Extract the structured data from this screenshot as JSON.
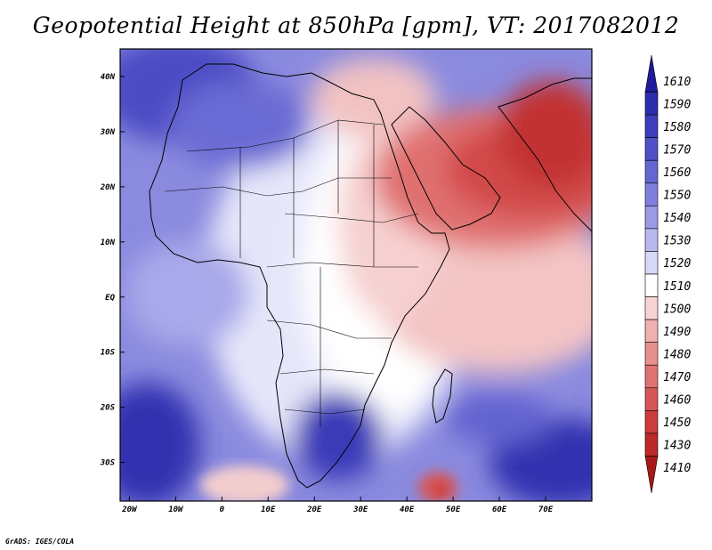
{
  "title": "Geopotential Height at 850hPa [gpm], VT: 2017082012",
  "footer": "GrADS: IGES/COLA",
  "map": {
    "region": "Africa and Arabian Peninsula",
    "lon_range": [
      -22,
      80
    ],
    "lat_range": [
      -37,
      45
    ],
    "lon_ticks": [
      {
        "lon": -20,
        "label": "20W"
      },
      {
        "lon": -10,
        "label": "10W"
      },
      {
        "lon": 0,
        "label": "0"
      },
      {
        "lon": 10,
        "label": "10E"
      },
      {
        "lon": 20,
        "label": "20E"
      },
      {
        "lon": 30,
        "label": "30E"
      },
      {
        "lon": 40,
        "label": "40E"
      },
      {
        "lon": 50,
        "label": "50E"
      },
      {
        "lon": 60,
        "label": "60E"
      },
      {
        "lon": 70,
        "label": "70E"
      }
    ],
    "lat_ticks": [
      {
        "lat": 40,
        "label": "40N"
      },
      {
        "lat": 30,
        "label": "30N"
      },
      {
        "lat": 20,
        "label": "20N"
      },
      {
        "lat": 10,
        "label": "10N"
      },
      {
        "lat": 0,
        "label": "EQ"
      },
      {
        "lat": -10,
        "label": "10S"
      },
      {
        "lat": -20,
        "label": "20S"
      },
      {
        "lat": -30,
        "label": "30S"
      }
    ],
    "field": "Geopotential Height at 850hPa",
    "units": "gpm",
    "valid_time": "2017082012"
  },
  "colorbar": {
    "levels": [
      "1610",
      "1590",
      "1580",
      "1570",
      "1560",
      "1550",
      "1540",
      "1530",
      "1520",
      "1510",
      "1500",
      "1490",
      "1480",
      "1470",
      "1460",
      "1450",
      "1430",
      "1410"
    ],
    "colors": [
      "#201a9c",
      "#2c2cae",
      "#3d3dbb",
      "#5050c8",
      "#6666d3",
      "#7f7fdd",
      "#9a9ae6",
      "#b8b8ef",
      "#d7d7f7",
      "#ffffff",
      "#f7d3d3",
      "#efb0b0",
      "#e89090",
      "#e07272",
      "#d65656",
      "#cc3c3c",
      "#bd2828",
      "#a81818"
    ]
  }
}
